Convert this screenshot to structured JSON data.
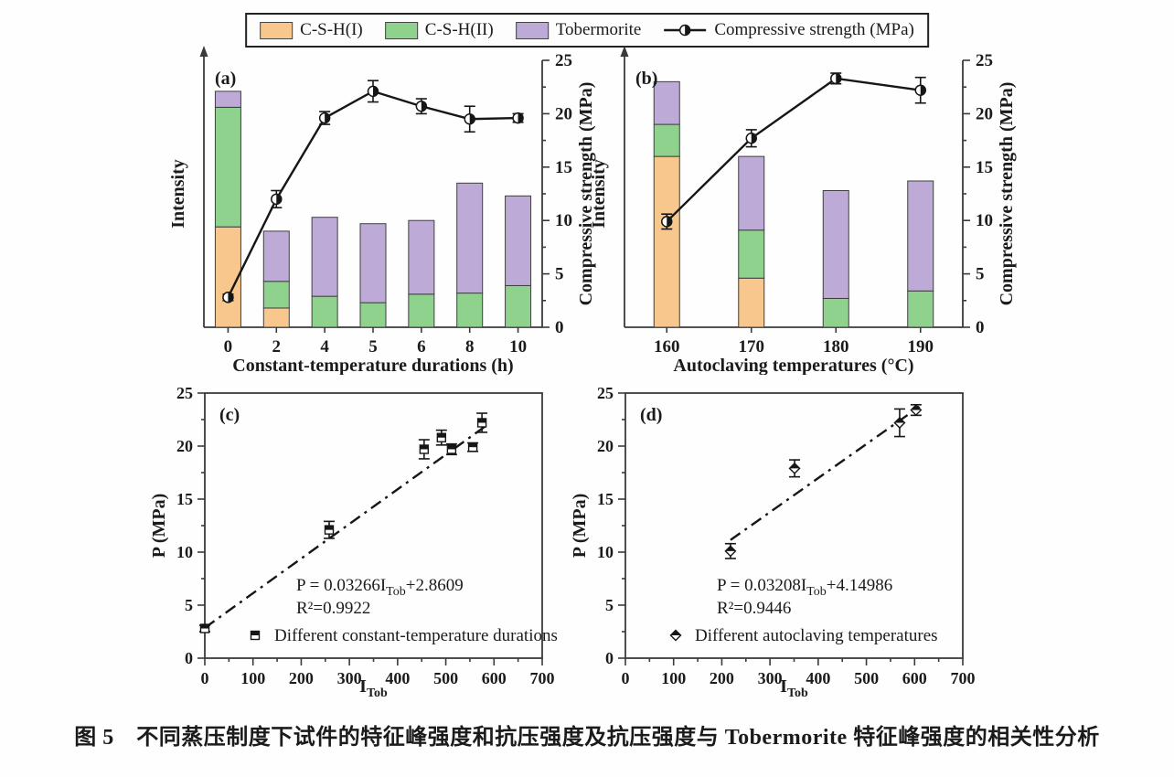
{
  "caption": "图 5　不同蒸压制度下试件的特征峰强度和抗压强度及抗压强度与 Tobermorite 特征峰强度的相关性分析",
  "colors": {
    "csh1": "#F7C78E",
    "csh2": "#8FD28D",
    "tobermorite": "#BDAAD7",
    "line": "#161616",
    "axis": "#3a3a3a",
    "text": "#1b1b1b"
  },
  "legend": {
    "items": [
      {
        "label": "C-S-H(I)",
        "swatch": "csh1"
      },
      {
        "label": "C-S-H(II)",
        "swatch": "csh2"
      },
      {
        "label": "Tobermorite",
        "swatch": "tobermorite"
      },
      {
        "label": "Compressive strength (MPa)",
        "swatch": "line-marker"
      }
    ]
  },
  "chart_data": [
    {
      "id": "a",
      "type": "bar+line",
      "panel_label": "(a)",
      "categories": [
        "0",
        "2",
        "4",
        "5",
        "6",
        "8",
        "10"
      ],
      "xlabel": "Constant-temperature durations (h)",
      "ylabel_left": "Intensity",
      "ylabel_right": "Compressive strength (MPa)",
      "y_right_range": [
        0,
        25
      ],
      "y_right_ticks": [
        0,
        5,
        10,
        15,
        20,
        25
      ],
      "series": [
        {
          "name": "C-S-H(I)",
          "color": "csh1",
          "values": [
            9.4,
            1.8,
            0,
            0,
            0,
            0,
            0
          ]
        },
        {
          "name": "C-S-H(II)",
          "color": "csh2",
          "values": [
            11.2,
            2.5,
            2.9,
            2.3,
            3.1,
            3.2,
            3.9
          ]
        },
        {
          "name": "Tobermorite",
          "color": "tobermorite",
          "values": [
            1.5,
            4.7,
            7.4,
            7.4,
            6.9,
            10.3,
            8.4
          ]
        }
      ],
      "line": {
        "name": "Compressive strength (MPa)",
        "values": [
          2.8,
          12.0,
          19.6,
          22.1,
          20.7,
          19.5,
          19.6
        ],
        "errors": [
          0.3,
          0.8,
          0.6,
          1.0,
          0.7,
          1.2,
          0.4
        ]
      }
    },
    {
      "id": "b",
      "type": "bar+line",
      "panel_label": "(b)",
      "categories": [
        "160",
        "170",
        "180",
        "190"
      ],
      "xlabel": "Autoclaving temperatures (°C)",
      "ylabel_left": "Intensity",
      "ylabel_right": "Compressive strength (MPa)",
      "y_right_range": [
        0,
        25
      ],
      "y_right_ticks": [
        0,
        5,
        10,
        15,
        20,
        25
      ],
      "series": [
        {
          "name": "C-S-H(I)",
          "color": "csh1",
          "values": [
            16.0,
            4.6,
            0,
            0
          ]
        },
        {
          "name": "C-S-H(II)",
          "color": "csh2",
          "values": [
            3.0,
            4.5,
            2.7,
            3.4
          ]
        },
        {
          "name": "Tobermorite",
          "color": "tobermorite",
          "values": [
            4.0,
            6.9,
            10.1,
            10.3
          ]
        }
      ],
      "line": {
        "name": "Compressive strength (MPa)",
        "values": [
          9.9,
          17.7,
          23.3,
          22.2
        ],
        "errors": [
          0.7,
          0.8,
          0.5,
          1.2
        ]
      }
    },
    {
      "id": "c",
      "type": "scatter",
      "panel_label": "(c)",
      "xlabel_main": "I",
      "xlabel_sub": "Tob",
      "ylabel": "P (MPa)",
      "xlim": [
        0,
        700
      ],
      "ylim": [
        0,
        25
      ],
      "xtick_step": 100,
      "xtick_minor": 50,
      "ytick_step": 5,
      "ytick_minor": 2.5,
      "marker": "square",
      "points": [
        {
          "x": 0,
          "y": 2.8,
          "e": 0.3
        },
        {
          "x": 258,
          "y": 12.1,
          "e": 0.8
        },
        {
          "x": 455,
          "y": 19.7,
          "e": 0.9
        },
        {
          "x": 491,
          "y": 20.8,
          "e": 0.7
        },
        {
          "x": 512,
          "y": 19.7,
          "e": 0.5
        },
        {
          "x": 556,
          "y": 19.9,
          "e": 0.4
        },
        {
          "x": 575,
          "y": 22.2,
          "e": 0.9
        }
      ],
      "fit": {
        "slope": 0.03266,
        "intercept": 2.8609,
        "x_start": 0,
        "x_end": 585
      },
      "equation": {
        "prefix": "P = 0.03266I",
        "sub": "Tob",
        "suffix": "+2.8609",
        "r2": "R²=0.9922"
      },
      "legend_label": "Different constant-temperature durations"
    },
    {
      "id": "d",
      "type": "scatter",
      "panel_label": "(d)",
      "xlabel_main": "I",
      "xlabel_sub": "Tob",
      "ylabel": "P (MPa)",
      "xlim": [
        0,
        700
      ],
      "ylim": [
        0,
        25
      ],
      "xtick_step": 100,
      "xtick_minor": 50,
      "ytick_step": 5,
      "ytick_minor": 2.5,
      "marker": "diamond",
      "points": [
        {
          "x": 218,
          "y": 10.1,
          "e": 0.7
        },
        {
          "x": 351,
          "y": 17.9,
          "e": 0.8
        },
        {
          "x": 569,
          "y": 22.2,
          "e": 1.3
        },
        {
          "x": 603,
          "y": 23.4,
          "e": 0.5
        }
      ],
      "fit": {
        "slope": 0.03208,
        "intercept": 4.14986,
        "x_start": 218,
        "x_end": 610
      },
      "equation": {
        "prefix": "P = 0.03208I",
        "sub": "Tob",
        "suffix": "+4.14986",
        "r2": "R²=0.9446"
      },
      "legend_label": "Different autoclaving temperatures"
    }
  ]
}
